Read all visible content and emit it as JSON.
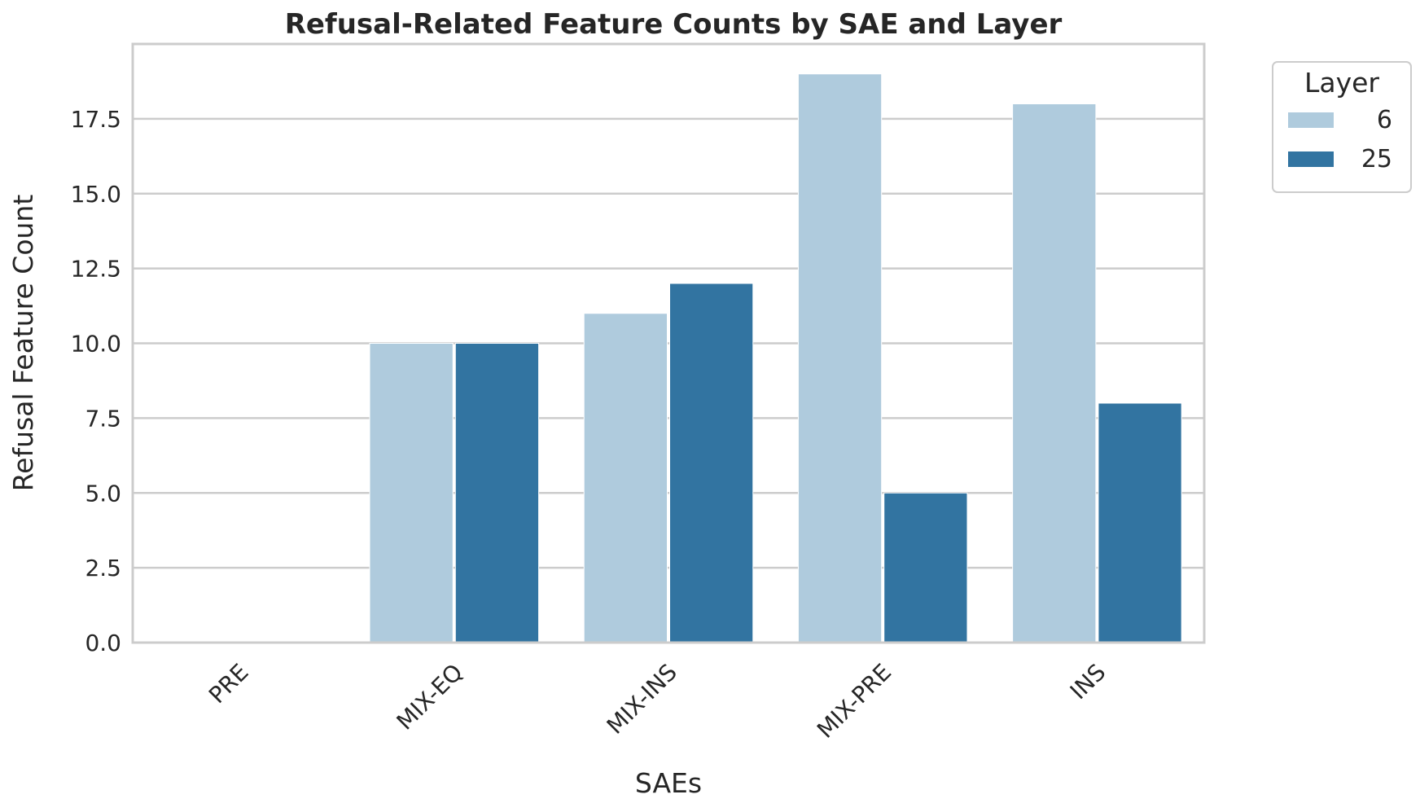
{
  "chart_data": {
    "type": "bar",
    "title": "Refusal-Related Feature Counts by SAE and Layer",
    "xlabel": "SAEs",
    "ylabel": "Refusal Feature Count",
    "categories": [
      "PRE",
      "MIX-EQ",
      "MIX-INS",
      "MIX-PRE",
      "INS"
    ],
    "series": [
      {
        "name": "6",
        "values": [
          0,
          10,
          11,
          19,
          18
        ],
        "color": "#afcbdd"
      },
      {
        "name": "25",
        "values": [
          0,
          10,
          12,
          5,
          8
        ],
        "color": "#3274a1"
      }
    ],
    "ylim": [
      0,
      20
    ],
    "yticks": [
      0.0,
      2.5,
      5.0,
      7.5,
      10.0,
      12.5,
      15.0,
      17.5
    ],
    "ytick_labels": [
      "0.0",
      "2.5",
      "5.0",
      "7.5",
      "10.0",
      "12.5",
      "15.0",
      "17.5"
    ],
    "grid": "y",
    "legend": {
      "title": "Layer",
      "placement": "outside-top-right"
    }
  }
}
